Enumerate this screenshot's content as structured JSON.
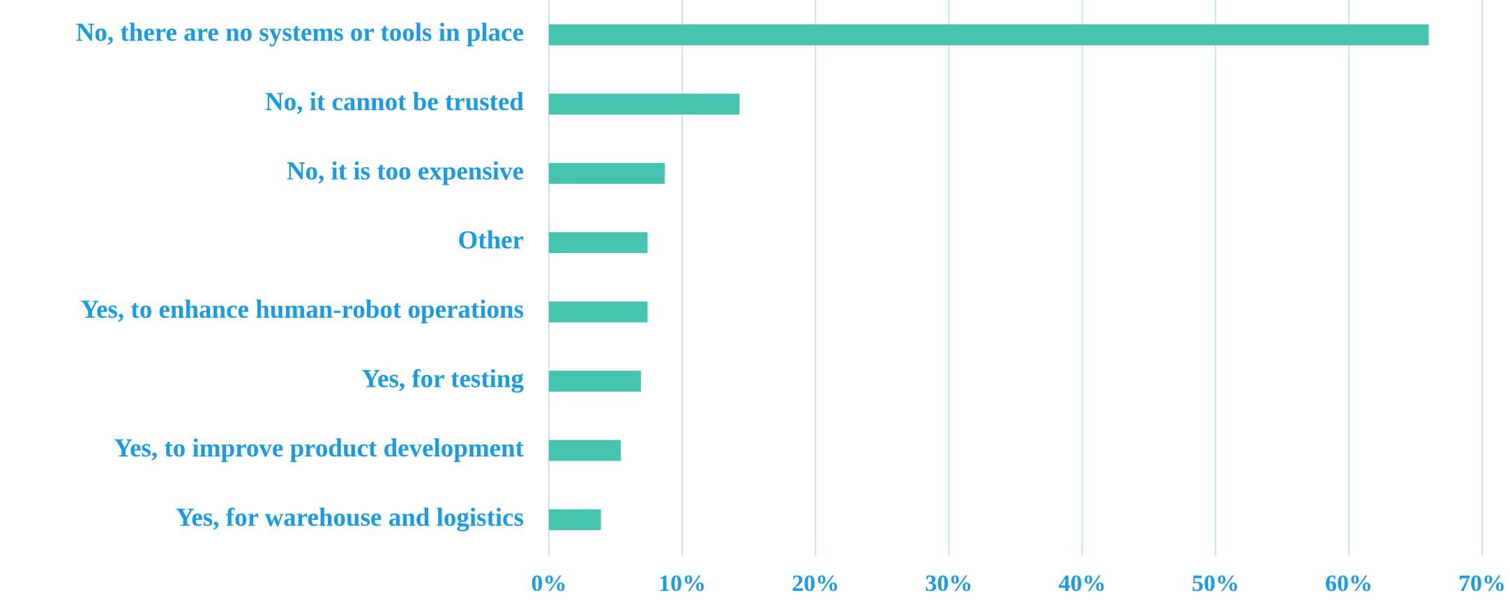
{
  "chart_data": {
    "type": "bar",
    "orientation": "horizontal",
    "categories": [
      "No, there are no systems or tools in place",
      "No, it cannot be trusted",
      "No, it is too expensive",
      "Other",
      "Yes, to enhance human-robot operations",
      "Yes, for testing",
      "Yes, to improve product development",
      "Yes, for warehouse and logistics"
    ],
    "values": [
      66,
      14.3,
      8.7,
      7.4,
      7.4,
      6.9,
      5.4,
      3.9
    ],
    "color": "#47c4b0",
    "xlim": [
      0,
      70
    ],
    "xticks": [
      {
        "value": 0,
        "label": "0%"
      },
      {
        "value": 10,
        "label": "10%"
      },
      {
        "value": 20,
        "label": "20%"
      },
      {
        "value": 30,
        "label": "30%"
      },
      {
        "value": 40,
        "label": "40%"
      },
      {
        "value": 50,
        "label": "50%"
      },
      {
        "value": 60,
        "label": "60%"
      },
      {
        "value": 70,
        "label": "70%"
      }
    ],
    "grid": true
  }
}
